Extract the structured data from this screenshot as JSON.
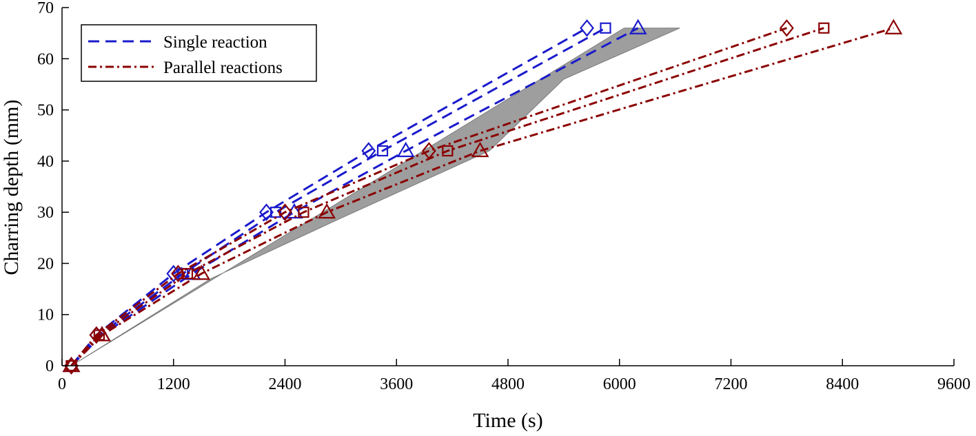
{
  "chart_data": {
    "type": "line",
    "title": "",
    "xlabel": "Time (s)",
    "ylabel": "Charring depth (mm)",
    "xlim": [
      0,
      9600
    ],
    "ylim": [
      0,
      70
    ],
    "xticks": [
      0,
      1200,
      2400,
      3600,
      4800,
      6000,
      7200,
      8400,
      9600
    ],
    "yticks": [
      0,
      10,
      20,
      30,
      40,
      50,
      60,
      70
    ],
    "grid": false,
    "legend_position": "top-left",
    "legend": [
      {
        "label": "Single reaction",
        "color": "#1a1acc",
        "style": "dashed"
      },
      {
        "label": "Parallel reactions",
        "color": "#8b0000",
        "style": "dashdot"
      }
    ],
    "colors": {
      "single": "#1a1acc",
      "parallel": "#8b0000",
      "band": "#9e9e9e"
    },
    "band": {
      "upper": [
        [
          100,
          0
        ],
        [
          6050,
          66
        ],
        [
          6650,
          66
        ]
      ],
      "lower": [
        [
          100,
          0
        ],
        [
          1600,
          17
        ],
        [
          2900,
          28
        ],
        [
          4600,
          42
        ],
        [
          5400,
          56
        ],
        [
          6650,
          66
        ]
      ]
    },
    "series": [
      {
        "group": "single",
        "marker": "diamond",
        "x": [
          100,
          370,
          1200,
          2200,
          3300,
          5650
        ],
        "y": [
          0,
          6,
          18,
          30,
          42,
          66
        ]
      },
      {
        "group": "single",
        "marker": "square",
        "x": [
          100,
          400,
          1300,
          2300,
          3450,
          5850
        ],
        "y": [
          0,
          6,
          18,
          30,
          42,
          66
        ]
      },
      {
        "group": "single",
        "marker": "triangle",
        "x": [
          100,
          430,
          1400,
          2500,
          3700,
          6200
        ],
        "y": [
          0,
          6,
          18,
          30,
          42,
          66
        ]
      },
      {
        "group": "parallel",
        "marker": "diamond",
        "x": [
          100,
          370,
          1250,
          2400,
          3950,
          7800
        ],
        "y": [
          0,
          6,
          18,
          30,
          42,
          66
        ]
      },
      {
        "group": "parallel",
        "marker": "square",
        "x": [
          100,
          400,
          1350,
          2600,
          4150,
          8200
        ],
        "y": [
          0,
          6,
          18,
          30,
          42,
          66
        ]
      },
      {
        "group": "parallel",
        "marker": "triangle",
        "x": [
          100,
          430,
          1500,
          2850,
          4500,
          8950
        ],
        "y": [
          0,
          6,
          18,
          30,
          42,
          66
        ]
      }
    ]
  }
}
